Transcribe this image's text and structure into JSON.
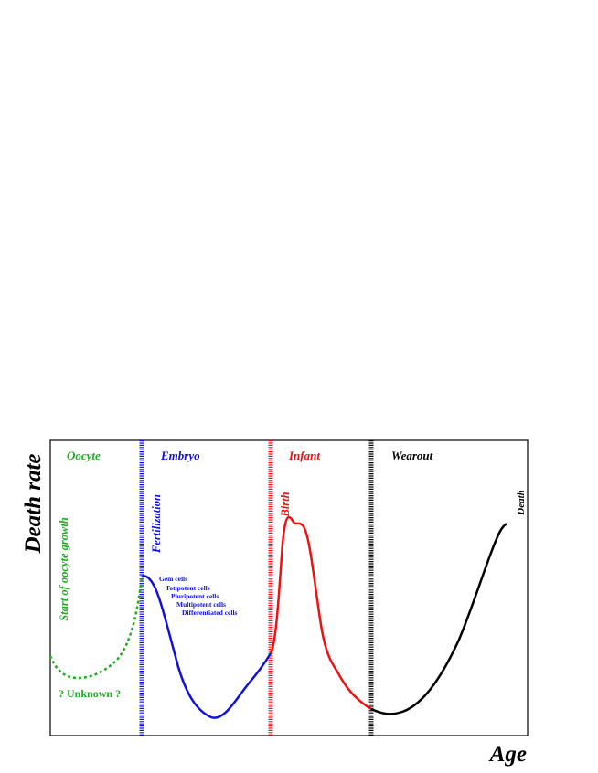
{
  "axes": {
    "ylabel": "Death rate",
    "xlabel": "Age"
  },
  "colors": {
    "oocyte": "#22aa22",
    "embryo": "#1010dd",
    "infant": "#ee1111",
    "wearout": "#000000"
  },
  "phases": [
    {
      "key": "oocyte",
      "label": "Oocyte"
    },
    {
      "key": "embryo",
      "label": "Embryo"
    },
    {
      "key": "infant",
      "label": "Infant"
    },
    {
      "key": "wearout",
      "label": "Wearout"
    }
  ],
  "markers": {
    "oocyte_start": "Start of oocyte growth",
    "fertilization": "Fertilization",
    "birth": "Birth",
    "death": "Death"
  },
  "unknown_label": "? Unknown ?",
  "cell_stages": [
    "Gem cells",
    "Totipotent cells",
    "Pluripotent cells",
    "Multipotent cells",
    "Differentiated cells"
  ]
}
